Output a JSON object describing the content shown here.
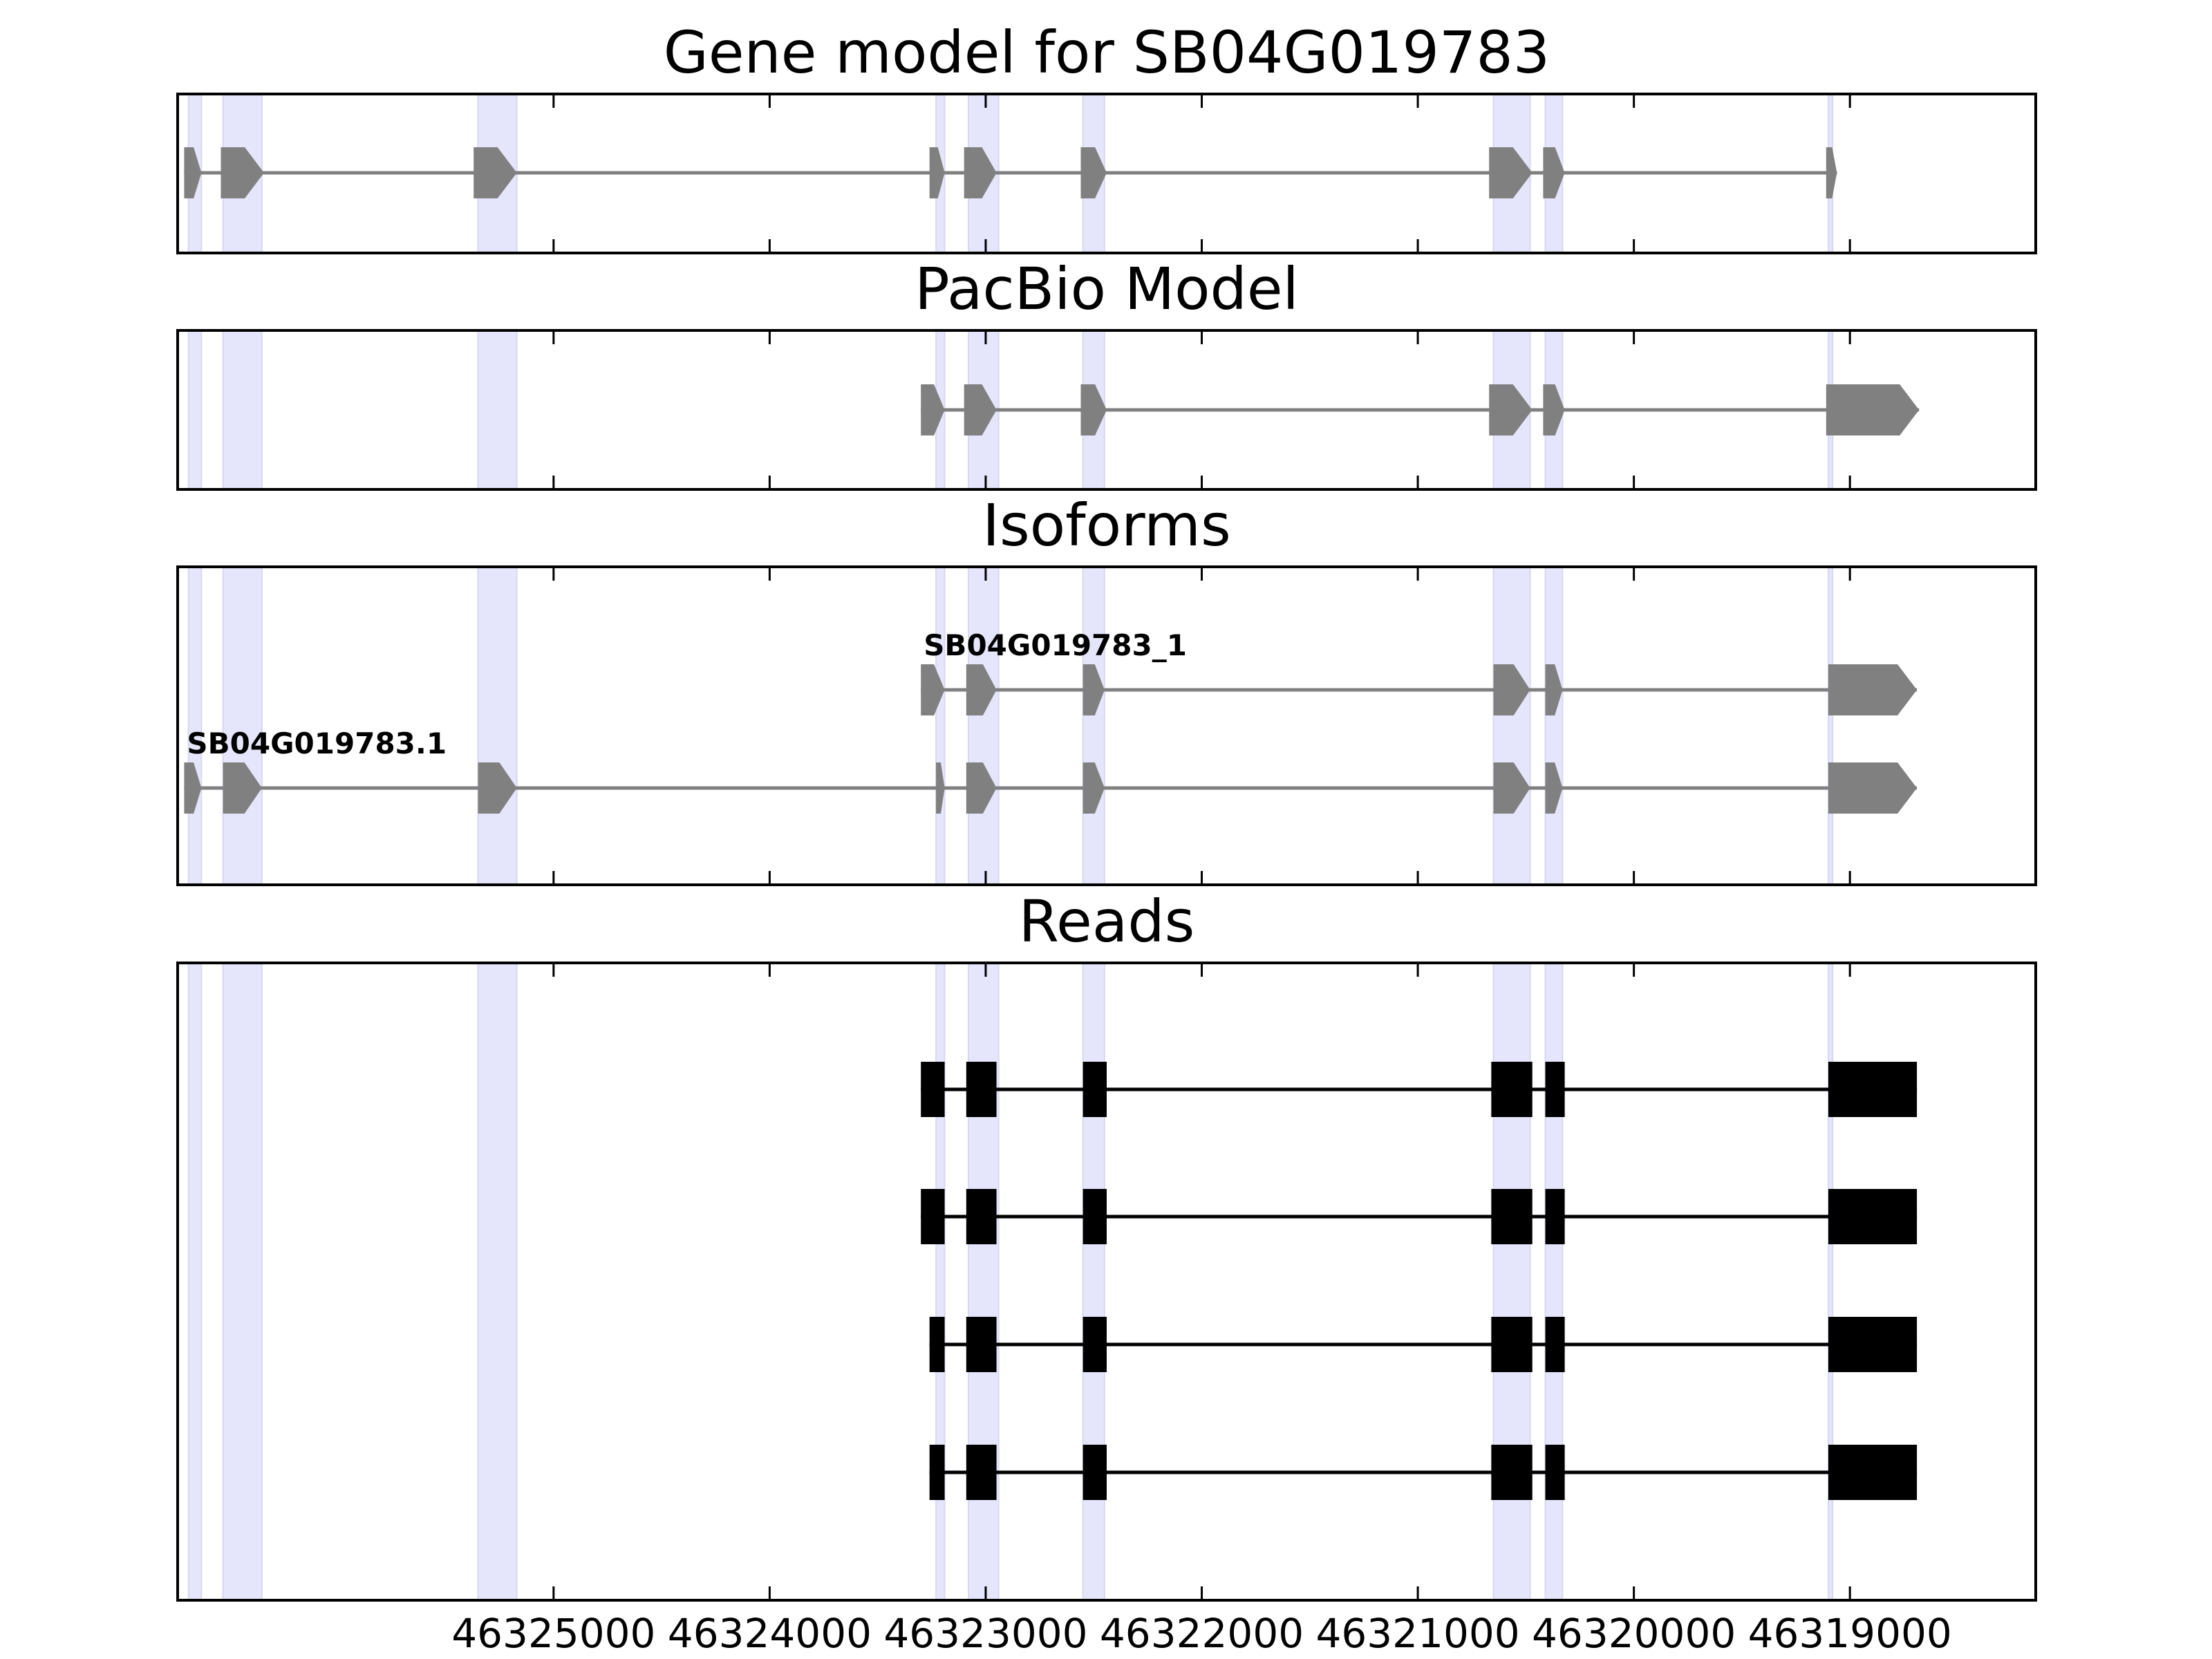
{
  "chart_data": {
    "type": "gene-track",
    "x_axis": {
      "range": [
        46326740,
        46318140
      ],
      "reversed": true,
      "ticks": [
        46325000,
        46324000,
        46323000,
        46322000,
        46321000,
        46320000,
        46319000
      ],
      "tick_labels": [
        "46325000",
        "46324000",
        "46323000",
        "46322000",
        "46321000",
        "46320000",
        "46319000"
      ]
    },
    "highlight_color": "#e5e5fb",
    "feature_color": "#808080",
    "read_color": "#000000",
    "highlights": [
      [
        46326690,
        46326630
      ],
      [
        46326530,
        46326350
      ],
      [
        46325350,
        46325170
      ],
      [
        46323230,
        46323190
      ],
      [
        46323080,
        46322940
      ],
      [
        46322550,
        46322450
      ],
      [
        46320650,
        46320480
      ],
      [
        46320410,
        46320330
      ],
      [
        46319100,
        46319080
      ]
    ],
    "panels": [
      {
        "title": "Gene model for SB04G019783",
        "tracks": [
          {
            "label": "",
            "exons": [
              [
                46326710,
                46326630
              ],
              [
                46326540,
                46326340
              ],
              [
                46325370,
                46325170
              ],
              [
                46323260,
                46323190
              ],
              [
                46323100,
                46322950
              ],
              [
                46322560,
                46322440
              ],
              [
                46320670,
                46320470
              ],
              [
                46320420,
                46320320
              ],
              [
                46319110,
                46319060
              ]
            ]
          }
        ]
      },
      {
        "title": "PacBio Model",
        "tracks": [
          {
            "label": "",
            "exons": [
              [
                46323300,
                46323190
              ],
              [
                46323100,
                46322950
              ],
              [
                46322560,
                46322440
              ],
              [
                46320670,
                46320470
              ],
              [
                46320420,
                46320320
              ],
              [
                46319110,
                46318680
              ]
            ]
          }
        ]
      },
      {
        "title": "Isoforms",
        "tracks": [
          {
            "label": "SB04G019783_1",
            "exons": [
              [
                46323300,
                46323190
              ],
              [
                46323090,
                46322950
              ],
              [
                46322550,
                46322450
              ],
              [
                46320650,
                46320480
              ],
              [
                46320410,
                46320330
              ],
              [
                46319100,
                46318690
              ]
            ]
          },
          {
            "label": "SB04G019783.1",
            "exons": [
              [
                46326710,
                46326630
              ],
              [
                46326530,
                46326350
              ],
              [
                46325350,
                46325170
              ],
              [
                46323230,
                46323190
              ],
              [
                46323090,
                46322950
              ],
              [
                46322550,
                46322450
              ],
              [
                46320650,
                46320480
              ],
              [
                46320410,
                46320330
              ],
              [
                46319100,
                46318690
              ]
            ]
          }
        ]
      },
      {
        "title": "Reads",
        "tracks": [
          {
            "label": "",
            "exons": [
              [
                46323300,
                46323190
              ],
              [
                46323090,
                46322950
              ],
              [
                46322550,
                46322440
              ],
              [
                46320660,
                46320470
              ],
              [
                46320410,
                46320320
              ],
              [
                46319100,
                46318690
              ]
            ]
          },
          {
            "label": "",
            "exons": [
              [
                46323300,
                46323190
              ],
              [
                46323090,
                46322950
              ],
              [
                46322550,
                46322440
              ],
              [
                46320660,
                46320470
              ],
              [
                46320410,
                46320320
              ],
              [
                46319100,
                46318690
              ]
            ]
          },
          {
            "label": "",
            "exons": [
              [
                46323260,
                46323190
              ],
              [
                46323090,
                46322950
              ],
              [
                46322550,
                46322440
              ],
              [
                46320660,
                46320470
              ],
              [
                46320410,
                46320320
              ],
              [
                46319100,
                46318690
              ]
            ]
          },
          {
            "label": "",
            "exons": [
              [
                46323260,
                46323190
              ],
              [
                46323090,
                46322950
              ],
              [
                46322550,
                46322440
              ],
              [
                46320660,
                46320470
              ],
              [
                46320410,
                46320320
              ],
              [
                46319100,
                46318690
              ]
            ]
          }
        ]
      }
    ]
  }
}
